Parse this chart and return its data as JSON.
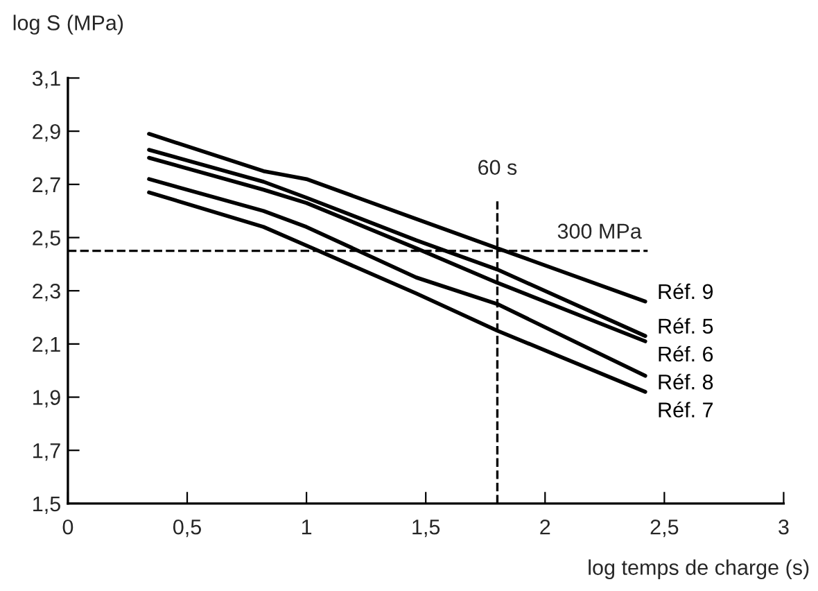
{
  "chart_data": {
    "type": "line",
    "ylabel": "log S (MPa)",
    "xlabel": "log temps de charge (s)",
    "xlim": [
      0,
      3
    ],
    "ylim": [
      1.5,
      3.1
    ],
    "xticks": [
      0,
      {
        "value": 0.5,
        "label": "0,5"
      },
      1,
      {
        "value": 1.5,
        "label": "1,5"
      },
      2,
      {
        "value": 2.5,
        "label": "2,5"
      },
      3
    ],
    "yticks": [
      {
        "value": 1.5,
        "label": "1,5"
      },
      {
        "value": 1.7,
        "label": "1,7"
      },
      {
        "value": 1.9,
        "label": "1,9"
      },
      {
        "value": 2.1,
        "label": "2,1"
      },
      {
        "value": 2.3,
        "label": "2,3"
      },
      {
        "value": 2.5,
        "label": "2,5"
      },
      {
        "value": 2.7,
        "label": "2,7"
      },
      {
        "value": 2.9,
        "label": "2,9"
      },
      {
        "value": 3.1,
        "label": "3,1"
      }
    ],
    "grid": false,
    "legend": false,
    "marker": "none",
    "line_style": "solid",
    "x": [
      0.34,
      0.82,
      1.0,
      1.46,
      1.8,
      2.42
    ],
    "series": [
      {
        "name": "Réf. 9",
        "color": "#000000",
        "values": [
          2.89,
          2.75,
          2.72,
          2.57,
          2.46,
          2.26
        ]
      },
      {
        "name": "Réf. 5",
        "color": "#000000",
        "values": [
          2.83,
          2.71,
          2.65,
          2.49,
          2.38,
          2.13
        ]
      },
      {
        "name": "Réf. 6",
        "color": "#000000",
        "values": [
          2.8,
          2.68,
          2.63,
          2.46,
          2.33,
          2.11
        ]
      },
      {
        "name": "Réf. 8",
        "color": "#000000",
        "values": [
          2.72,
          2.6,
          2.54,
          2.35,
          2.25,
          1.98
        ]
      },
      {
        "name": "Réf. 7",
        "color": "#000000",
        "values": [
          2.67,
          2.54,
          2.47,
          2.29,
          2.15,
          1.92
        ]
      }
    ],
    "ref_lines": [
      {
        "axis": "x",
        "value": 1.8,
        "label": "60 s",
        "color": "#000000",
        "line_style": "dashed"
      },
      {
        "axis": "y",
        "value": 2.45,
        "label": "300 MPa",
        "color": "#000000",
        "line_style": "dashed"
      }
    ]
  }
}
